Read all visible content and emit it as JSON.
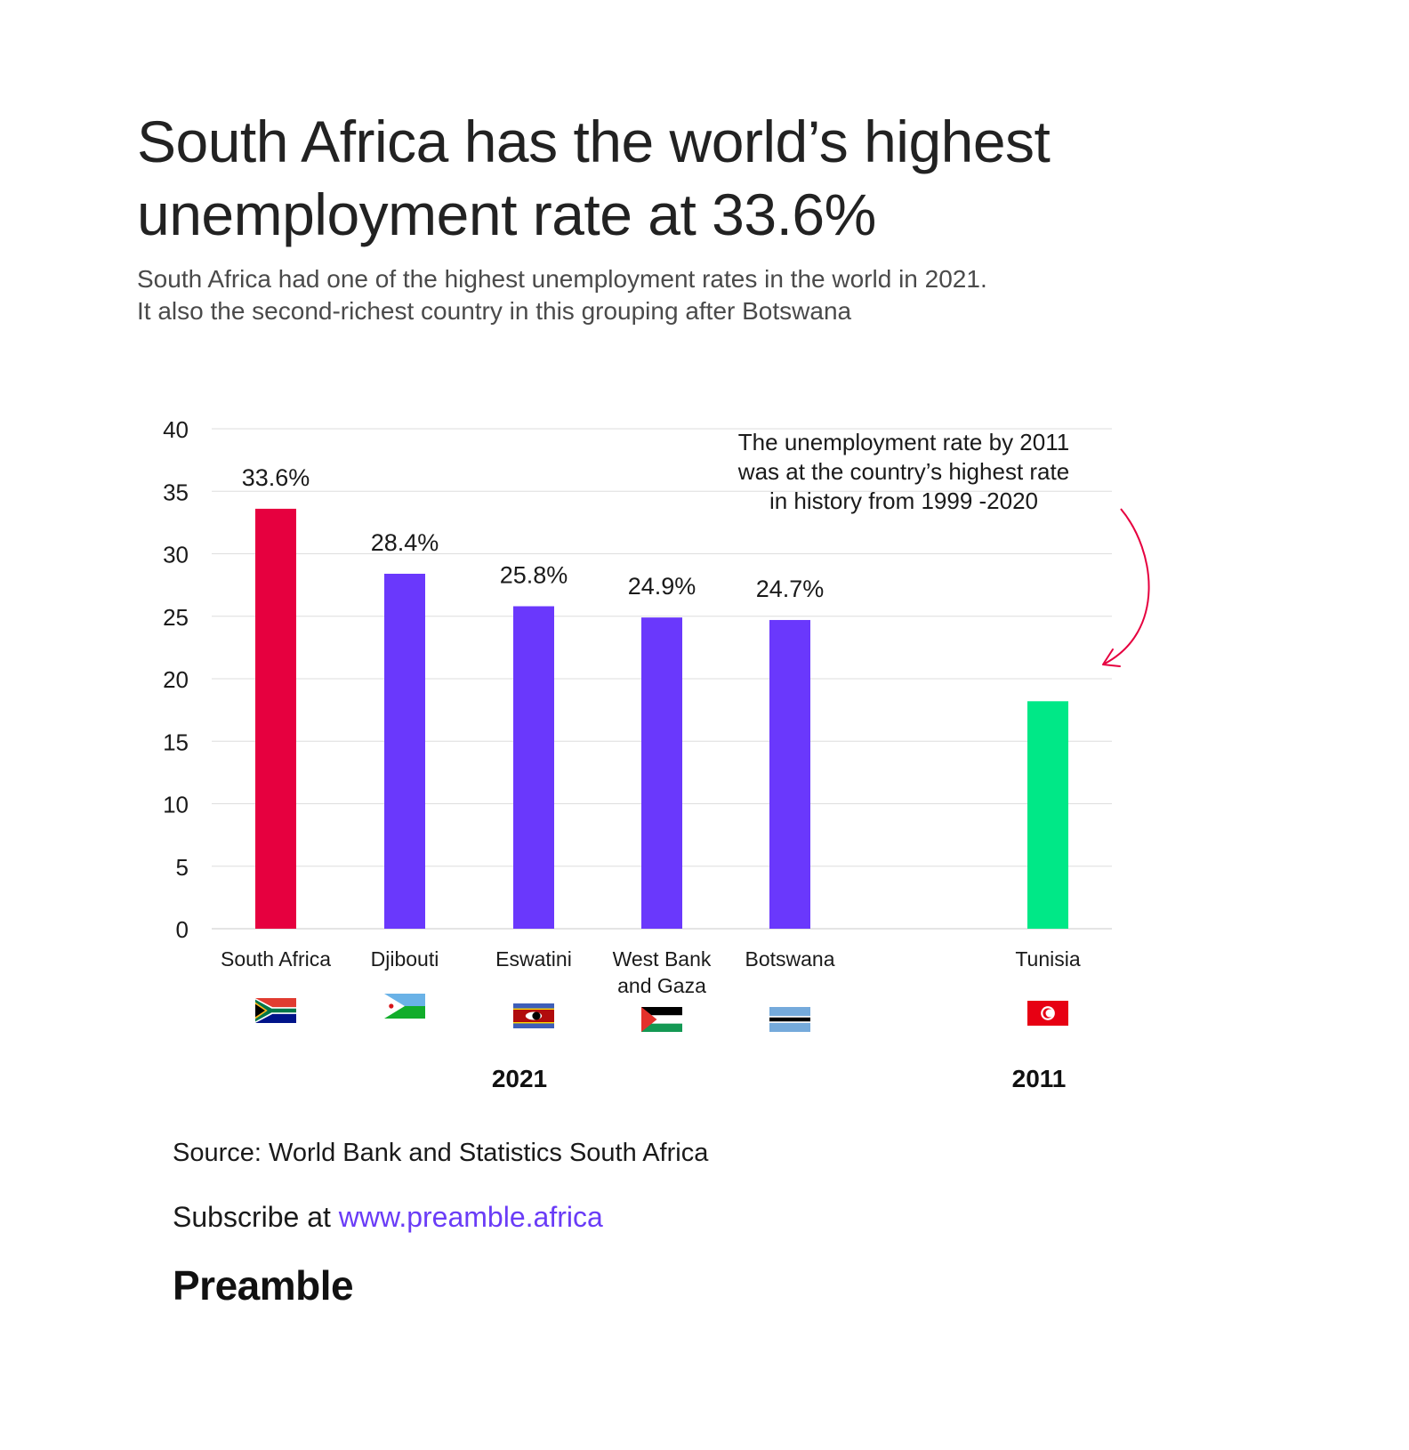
{
  "header": {
    "title": "South Africa has the world’s highest unemployment rate at 33.6%",
    "subtitle_line1": "South Africa had one of the highest unemployment rates in the world in 2021.",
    "subtitle_line2": "It also the second-richest country in this grouping after Botswana"
  },
  "chart_data": {
    "type": "bar",
    "title": "South Africa has the world’s highest unemployment rate at 33.6%",
    "xlabel": "",
    "ylabel": "",
    "ylim": [
      0,
      40
    ],
    "yticks": [
      0,
      5,
      10,
      15,
      20,
      25,
      30,
      35,
      40
    ],
    "grid": true,
    "bars": [
      {
        "category": "South Africa",
        "value": 33.6,
        "label": "33.6%",
        "color": "#e6003f",
        "group": "2021",
        "flag": "south-africa"
      },
      {
        "category": "Djibouti",
        "value": 28.4,
        "label": "28.4%",
        "color": "#6a38fc",
        "group": "2021",
        "flag": "djibouti"
      },
      {
        "category": "Eswatini",
        "value": 25.8,
        "label": "25.8%",
        "color": "#6a38fc",
        "group": "2021",
        "flag": "eswatini"
      },
      {
        "category": "West Bank and Gaza",
        "value": 24.9,
        "label": "24.9%",
        "color": "#6a38fc",
        "group": "2021",
        "flag": "palestine"
      },
      {
        "category": "Botswana",
        "value": 24.7,
        "label": "24.7%",
        "color": "#6a38fc",
        "group": "2021",
        "flag": "botswana"
      },
      {
        "category": "Tunisia",
        "value": 18.2,
        "label": "",
        "color": "#00e887",
        "group": "2011",
        "flag": "tunisia"
      }
    ],
    "groups": [
      "2021",
      "2011"
    ],
    "annotation": {
      "lines": [
        "The unemployment rate by 2011",
        "was at the country’s highest rate",
        "in history from 1999 -2020"
      ],
      "target": "Tunisia",
      "arrow_color": "#e6003f"
    }
  },
  "footer": {
    "source": "Source: World Bank and Statistics South Africa",
    "subscribe_prefix": "Subscribe at ",
    "subscribe_link": "www.preamble.africa",
    "brand": "Preamble"
  }
}
